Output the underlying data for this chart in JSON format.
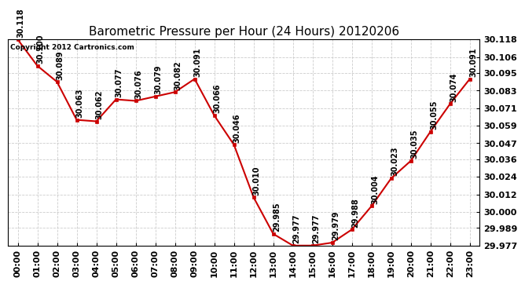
{
  "title": "Barometric Pressure per Hour (24 Hours) 20120206",
  "copyright_text": "Copyright 2012 Cartronics.com",
  "hours": [
    0,
    1,
    2,
    3,
    4,
    5,
    6,
    7,
    8,
    9,
    10,
    11,
    12,
    13,
    14,
    15,
    16,
    17,
    18,
    19,
    20,
    21,
    22,
    23
  ],
  "hour_labels": [
    "00:00",
    "01:00",
    "02:00",
    "03:00",
    "04:00",
    "05:00",
    "06:00",
    "07:00",
    "08:00",
    "09:00",
    "10:00",
    "11:00",
    "12:00",
    "13:00",
    "14:00",
    "15:00",
    "16:00",
    "17:00",
    "18:00",
    "19:00",
    "20:00",
    "21:00",
    "22:00",
    "23:00"
  ],
  "values": [
    30.118,
    30.1,
    30.089,
    30.063,
    30.062,
    30.077,
    30.076,
    30.079,
    30.082,
    30.091,
    30.066,
    30.046,
    30.01,
    29.985,
    29.977,
    29.977,
    29.979,
    29.988,
    30.004,
    30.023,
    30.035,
    30.055,
    30.074,
    30.091
  ],
  "ylim_min": 29.977,
  "ylim_max": 30.118,
  "yticks": [
    29.977,
    29.989,
    30.0,
    30.012,
    30.024,
    30.036,
    30.047,
    30.059,
    30.071,
    30.083,
    30.095,
    30.106,
    30.118
  ],
  "line_color": "#CC0000",
  "marker_color": "#CC0000",
  "bg_color": "#FFFFFF",
  "plot_bg_color": "#FFFFFF",
  "grid_color": "#CCCCCC",
  "title_fontsize": 11,
  "tick_fontsize": 8,
  "annotation_fontsize": 7
}
